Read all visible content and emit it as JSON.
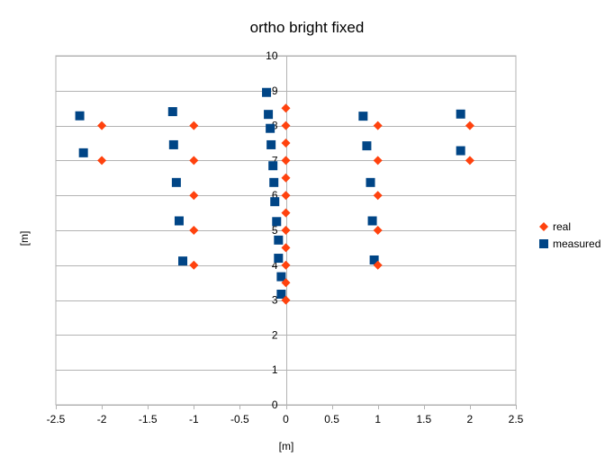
{
  "chart_data": {
    "type": "scatter",
    "title": "ortho bright fixed",
    "xlabel": "[m]",
    "ylabel": "[m]",
    "xlim": [
      -2.5,
      2.5
    ],
    "ylim": [
      0,
      10
    ],
    "x_ticks": [
      -2.5,
      -2,
      -1.5,
      -1,
      -0.5,
      0,
      0.5,
      1,
      1.5,
      2,
      2.5
    ],
    "y_ticks": [
      0,
      1,
      2,
      3,
      4,
      5,
      6,
      7,
      8,
      9,
      10
    ],
    "x_tick_labels": [
      "-2.5",
      "-2",
      "-1.5",
      "-1",
      "-0.5",
      "0",
      "0.5",
      "1",
      "1.5",
      "2",
      "2.5"
    ],
    "y_tick_labels": [
      "0",
      "1",
      "2",
      "3",
      "4",
      "5",
      "6",
      "7",
      "8",
      "9",
      "10"
    ],
    "grid": "horizontal",
    "legend_position": "right",
    "series": [
      {
        "name": "real",
        "marker": "diamond",
        "color": "#ff420e",
        "points": [
          [
            0,
            3
          ],
          [
            0,
            3.5
          ],
          [
            0,
            4
          ],
          [
            0,
            4.5
          ],
          [
            0,
            5
          ],
          [
            0,
            5.5
          ],
          [
            0,
            6
          ],
          [
            0,
            6.5
          ],
          [
            0,
            7
          ],
          [
            0,
            7.5
          ],
          [
            0,
            8
          ],
          [
            0,
            8.5
          ],
          [
            -1,
            4
          ],
          [
            1,
            4
          ],
          [
            -1,
            5
          ],
          [
            1,
            5
          ],
          [
            -1,
            6
          ],
          [
            1,
            6
          ],
          [
            -2,
            7
          ],
          [
            -1,
            7
          ],
          [
            1,
            7
          ],
          [
            2,
            7
          ],
          [
            -2,
            8
          ],
          [
            -1,
            8
          ],
          [
            1,
            8
          ],
          [
            2,
            8
          ]
        ]
      },
      {
        "name": "measured",
        "marker": "square",
        "color": "#004586",
        "points": [
          [
            -0.05,
            3.17
          ],
          [
            -0.05,
            3.67
          ],
          [
            -0.08,
            4.2
          ],
          [
            -0.08,
            4.72
          ],
          [
            -0.1,
            5.25
          ],
          [
            -0.12,
            5.82
          ],
          [
            -0.13,
            6.37
          ],
          [
            -0.14,
            6.85
          ],
          [
            -0.16,
            7.45
          ],
          [
            -0.17,
            7.92
          ],
          [
            -0.19,
            8.32
          ],
          [
            -0.21,
            8.95
          ],
          [
            -1.12,
            4.12
          ],
          [
            0.96,
            4.15
          ],
          [
            -1.16,
            5.27
          ],
          [
            0.94,
            5.27
          ],
          [
            -1.19,
            6.37
          ],
          [
            0.92,
            6.37
          ],
          [
            -2.2,
            7.22
          ],
          [
            -1.22,
            7.45
          ],
          [
            0.88,
            7.42
          ],
          [
            1.9,
            7.28
          ],
          [
            -2.24,
            8.28
          ],
          [
            -1.23,
            8.4
          ],
          [
            0.84,
            8.27
          ],
          [
            1.9,
            8.33
          ]
        ]
      }
    ]
  }
}
